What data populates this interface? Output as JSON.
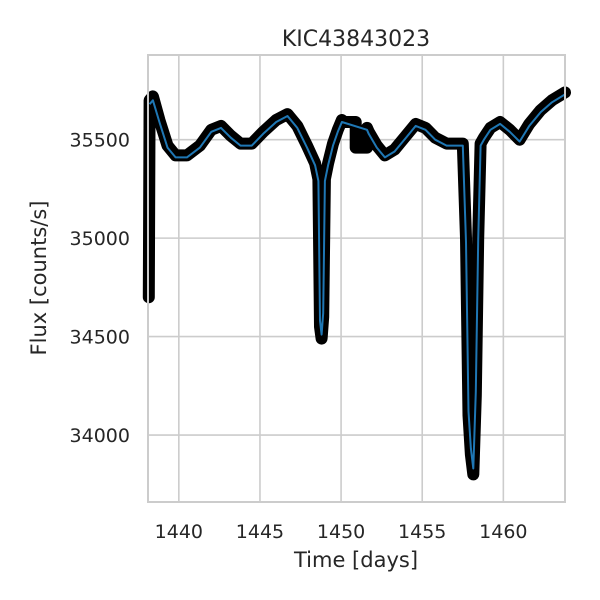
{
  "chart_data": {
    "type": "line",
    "title": "KIC43843023",
    "xlabel": "Time [days]",
    "ylabel": "Flux [counts/s]",
    "xlim": [
      1438.1,
      1463.8
    ],
    "ylim": [
      33660,
      35930
    ],
    "xticks": [
      1440,
      1445,
      1450,
      1455,
      1460
    ],
    "yticks": [
      34000,
      34500,
      35000,
      35500
    ],
    "grid": true,
    "legend": "none",
    "colors": {
      "raw": "#000000",
      "smoothed": "#1f77b4"
    },
    "series": [
      {
        "style": "raw",
        "x": [
          1438.15,
          1438.2,
          1438.4,
          1438.8,
          1439.3,
          1439.8,
          1440.5,
          1441.3,
          1442.0,
          1442.6,
          1443.2,
          1443.8,
          1444.5,
          1445.2,
          1446.0,
          1446.7,
          1447.3,
          1447.9,
          1448.4,
          1448.6,
          1448.7,
          1448.8,
          1448.9,
          1449.0,
          1449.2,
          1449.5,
          1449.8,
          1450.05,
          1450.1,
          1450.9,
          1450.9,
          1451.6,
          1451.6,
          1451.7,
          1452.2,
          1452.7,
          1453.3,
          1454.0,
          1454.6,
          1455.2,
          1455.8,
          1456.5,
          1457.0,
          1457.5,
          1457.7,
          1457.85,
          1458.0,
          1458.15,
          1458.3,
          1458.45,
          1458.6,
          1458.8,
          1459.2,
          1459.8,
          1460.4,
          1461.0,
          1461.6,
          1462.3,
          1463.0,
          1463.8
        ],
        "y": [
          34700,
          35700,
          35720,
          35600,
          35470,
          35420,
          35420,
          35470,
          35550,
          35570,
          35520,
          35480,
          35480,
          35540,
          35600,
          35630,
          35570,
          35470,
          35380,
          35300,
          34550,
          34490,
          34600,
          35300,
          35380,
          35480,
          35550,
          35600,
          35590,
          35590,
          35460,
          35460,
          35560,
          35540,
          35470,
          35420,
          35450,
          35520,
          35580,
          35560,
          35510,
          35480,
          35480,
          35480,
          35000,
          34100,
          33900,
          33800,
          34200,
          35000,
          35480,
          35510,
          35560,
          35590,
          35550,
          35500,
          35580,
          35650,
          35700,
          35740
        ]
      },
      {
        "style": "smoothed",
        "x": [
          1438.2,
          1438.4,
          1438.8,
          1439.3,
          1439.8,
          1440.5,
          1441.3,
          1442.0,
          1442.6,
          1443.2,
          1443.8,
          1444.5,
          1445.2,
          1446.0,
          1446.7,
          1447.3,
          1447.9,
          1448.4,
          1448.6,
          1448.7,
          1448.8,
          1448.9,
          1449.0,
          1449.2,
          1449.5,
          1449.8,
          1450.05,
          1451.6,
          1451.7,
          1452.2,
          1452.7,
          1453.3,
          1454.0,
          1454.6,
          1455.2,
          1455.8,
          1456.5,
          1457.0,
          1457.5,
          1457.7,
          1457.85,
          1458.0,
          1458.15,
          1458.3,
          1458.45,
          1458.6,
          1458.8,
          1459.2,
          1459.8,
          1460.4,
          1461.0,
          1461.6,
          1462.3,
          1463.0,
          1463.8
        ],
        "y": [
          35680,
          35700,
          35590,
          35460,
          35410,
          35410,
          35460,
          35540,
          35560,
          35510,
          35470,
          35470,
          35530,
          35590,
          35620,
          35560,
          35460,
          35370,
          35290,
          34580,
          34510,
          34620,
          35290,
          35370,
          35470,
          35540,
          35590,
          35550,
          35530,
          35460,
          35410,
          35440,
          35510,
          35570,
          35550,
          35500,
          35470,
          35470,
          35470,
          34980,
          34120,
          33930,
          33830,
          34220,
          34990,
          35470,
          35500,
          35550,
          35580,
          35540,
          35490,
          35570,
          35640,
          35690,
          35730
        ]
      }
    ]
  }
}
